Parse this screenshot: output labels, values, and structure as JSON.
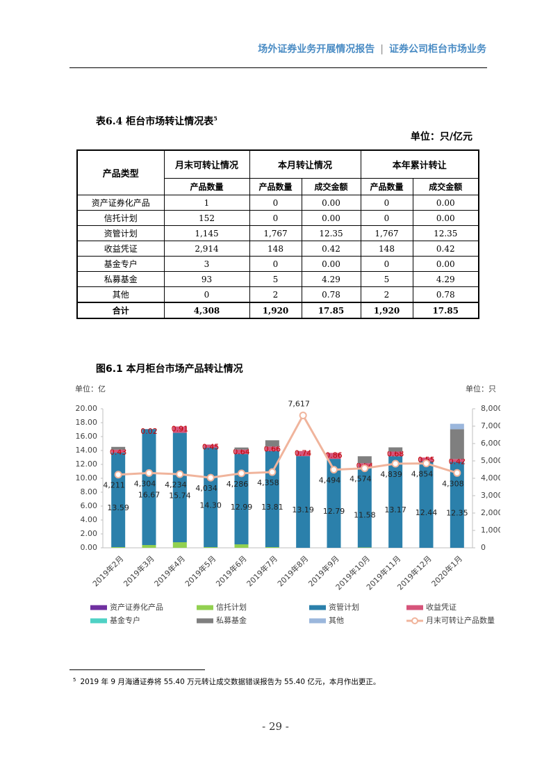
{
  "header": {
    "left": "场外证券业务开展情况报告",
    "right": "证券公司柜台市场业务"
  },
  "table": {
    "title": "表6.4 柜台市场转让情况表",
    "title_note": "5",
    "unit": "单位：只/亿元",
    "headers": [
      "产品类型",
      "月末可转让情况",
      "本月转让情况",
      "本年累计转让"
    ],
    "subheaders": [
      "产品数量",
      "产品数量",
      "成交金额",
      "产品数量",
      "成交金额"
    ],
    "rows": [
      [
        "资产证券化产品",
        "1",
        "0",
        "0.00",
        "0",
        "0.00"
      ],
      [
        "信托计划",
        "152",
        "0",
        "0.00",
        "0",
        "0.00"
      ],
      [
        "资管计划",
        "1,145",
        "1,767",
        "12.35",
        "1,767",
        "12.35"
      ],
      [
        "收益凭证",
        "2,914",
        "148",
        "0.42",
        "148",
        "0.42"
      ],
      [
        "基金专户",
        "3",
        "0",
        "0.00",
        "0",
        "0.00"
      ],
      [
        "私募基金",
        "93",
        "5",
        "4.29",
        "5",
        "4.29"
      ],
      [
        "其他",
        "0",
        "2",
        "0.78",
        "2",
        "0.78"
      ],
      [
        "合计",
        "4,308",
        "1,920",
        "17.85",
        "1,920",
        "17.85"
      ]
    ]
  },
  "chart_data": {
    "type": "bar",
    "title": "图6.1 本月柜台市场产品转让情况",
    "y_unit": "单位：亿",
    "y2_unit": "单位：只",
    "categories": [
      "2019年2月",
      "2019年3月",
      "2019年4月",
      "2019年5月",
      "2019年6月",
      "2019年7月",
      "2019年8月",
      "2019年9月",
      "2019年10月",
      "2019年11月",
      "2019年12月",
      "2020年1月"
    ],
    "ylim": [
      0,
      20
    ],
    "yticks": [
      {
        "value": 0,
        "label": "0.00"
      },
      {
        "value": 2,
        "label": "2.00"
      },
      {
        "value": 4,
        "label": "4.00"
      },
      {
        "value": 6,
        "label": "6.00"
      },
      {
        "value": 8,
        "label": "8.00"
      },
      {
        "value": 10,
        "label": "10.00"
      },
      {
        "value": 12,
        "label": "12.00"
      },
      {
        "value": 14,
        "label": "14.00"
      },
      {
        "value": 16,
        "label": "16.00"
      },
      {
        "value": 18,
        "label": "18.00"
      },
      {
        "value": 20,
        "label": "20.00"
      }
    ],
    "y2lim": [
      0,
      8000
    ],
    "y2ticks": [
      0,
      {
        "value": 1000,
        "label": "1,000"
      },
      {
        "value": 2000,
        "label": "2,000"
      },
      {
        "value": 3000,
        "label": "3,000"
      },
      {
        "value": 4000,
        "label": "4,000"
      },
      {
        "value": 5000,
        "label": "5,000"
      },
      {
        "value": 6000,
        "label": "6,000"
      },
      {
        "value": 7000,
        "label": "7,000"
      },
      {
        "value": 8000,
        "label": "8,000"
      }
    ],
    "grid": false,
    "series": [
      {
        "name": "资产证券化产品",
        "color": "#7030a0",
        "values": [
          0,
          0,
          0,
          0,
          0,
          0,
          0,
          0,
          0,
          0,
          0,
          0
        ]
      },
      {
        "name": "信托计划",
        "color": "#92d050",
        "values": [
          0.1,
          0.4,
          0.8,
          0.1,
          0.5,
          0.1,
          0,
          0,
          0.05,
          0,
          0,
          0
        ]
      },
      {
        "name": "资管计划",
        "color": "#2b80ab",
        "values": [
          13.59,
          16.67,
          15.74,
          14.3,
          12.99,
          13.81,
          13.19,
          12.79,
          11.58,
          13.17,
          12.44,
          12.35
        ],
        "value_labels": [
          "13.59",
          "16.67",
          "15.74",
          "14.30",
          "12.99",
          "13.81",
          "13.19",
          "12.79",
          "11.58",
          "13.17",
          "12.44",
          "12.35"
        ]
      },
      {
        "name": "收益凭证",
        "color": "#d6547a",
        "values": [
          0.43,
          0.02,
          0.91,
          0.45,
          0.64,
          0.66,
          0.74,
          0.86,
          0.54,
          0.68,
          0.55,
          0.42
        ],
        "value_labels": [
          "0.43",
          "0.02",
          "0.91",
          "0.45",
          "0.64",
          "0.66",
          "0.74",
          "0.86",
          "0.54",
          "0.68",
          "0.55",
          "0.42"
        ]
      },
      {
        "name": "基金专户",
        "color": "#4fd1c5",
        "values": [
          0,
          0,
          0,
          0,
          0,
          0,
          0,
          0,
          0,
          0,
          0,
          0
        ]
      },
      {
        "name": "私募基金",
        "color": "#7f7f7f",
        "values": [
          0.4,
          0,
          0,
          0,
          0.3,
          0.9,
          0,
          0,
          1.0,
          0.6,
          0,
          4.29
        ]
      },
      {
        "name": "其他",
        "color": "#9bb7dc",
        "values": [
          0,
          0,
          0,
          0,
          0,
          0,
          0,
          0,
          0,
          0,
          0,
          0.78
        ]
      },
      {
        "name": "月末可转让产品数量",
        "color": "#f0b49c",
        "type": "line",
        "axis": "y2",
        "values": [
          4211,
          4304,
          4234,
          4034,
          4286,
          4358,
          7617,
          4494,
          4574,
          4839,
          4854,
          4308
        ],
        "value_labels": [
          "4,211",
          "4,304",
          "4,234",
          "4,034",
          "4,286",
          "4,358",
          "7,617",
          "4,494",
          "4,574",
          "4,839",
          "4,854",
          "4,308"
        ]
      }
    ]
  },
  "footnote": {
    "mark": "5",
    "text": "2019 年 9 月海通证券将 55.40 万元转让成交数据错误报告为 55.40 亿元，本月作出更正。"
  },
  "page_number": "- 29 -"
}
